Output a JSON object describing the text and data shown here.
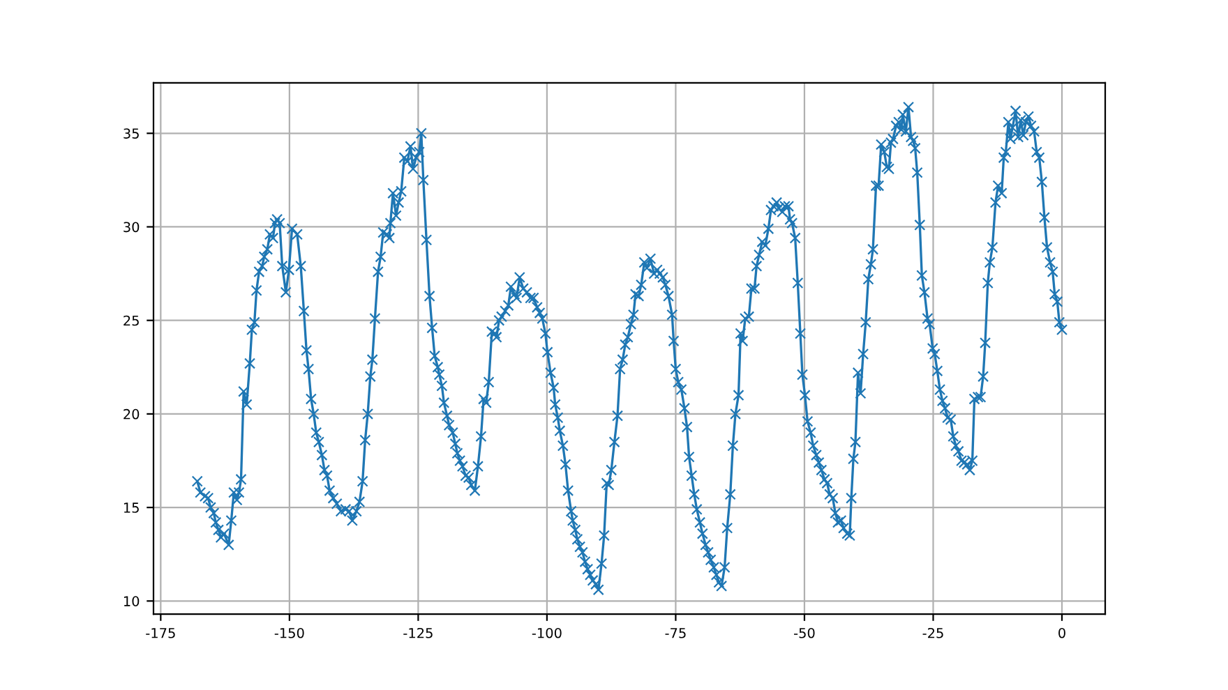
{
  "chart_data": {
    "type": "line",
    "color": "#1f77b4",
    "marker": "cross",
    "line_style": "solid",
    "grid": true,
    "xlim": [
      -176.4,
      8.4
    ],
    "ylim": [
      9.3,
      37.7
    ],
    "xticks": [
      -175,
      -150,
      -125,
      -100,
      -75,
      -50,
      -25,
      0
    ],
    "yticks": [
      10,
      15,
      20,
      25,
      30,
      35
    ],
    "x": [
      -167.9,
      -167.3,
      -166.4,
      -165.8,
      -165.3,
      -164.7,
      -164.3,
      -163.8,
      -163.3,
      -162.7,
      -161.8,
      -161.3,
      -160.8,
      -160.2,
      -159.8,
      -159.4,
      -158.9,
      -158.3,
      -157.7,
      -157.3,
      -156.8,
      -156.4,
      -155.9,
      -155.3,
      -154.9,
      -154.3,
      -153.8,
      -153.2,
      -152.8,
      -152.4,
      -151.9,
      -151.4,
      -150.7,
      -150.1,
      -149.5,
      -148.5,
      -147.8,
      -147.2,
      -146.7,
      -146.3,
      -145.8,
      -145.3,
      -144.8,
      -144.3,
      -143.7,
      -143.2,
      -142.7,
      -142.2,
      -141.5,
      -140.8,
      -140.0,
      -139.1,
      -138.4,
      -137.8,
      -137.0,
      -136.4,
      -135.8,
      -135.3,
      -134.8,
      -134.3,
      -133.9,
      -133.4,
      -132.8,
      -132.3,
      -131.8,
      -131.1,
      -130.6,
      -130.4,
      -129.9,
      -129.3,
      -128.8,
      -128.3,
      -127.7,
      -127.1,
      -126.5,
      -126.0,
      -125.4,
      -124.8,
      -124.4,
      -124.0,
      -123.4,
      -122.8,
      -122.3,
      -121.8,
      -121.2,
      -120.9,
      -120.4,
      -120.0,
      -119.4,
      -119.0,
      -118.3,
      -117.8,
      -117.4,
      -116.9,
      -116.4,
      -115.8,
      -115.2,
      -114.7,
      -114.0,
      -113.4,
      -112.8,
      -112.3,
      -111.8,
      -111.3,
      -110.7,
      -110.1,
      -109.8,
      -109.3,
      -108.8,
      -108.1,
      -107.5,
      -107.0,
      -106.3,
      -105.9,
      -105.3,
      -104.6,
      -103.9,
      -103.2,
      -102.6,
      -101.9,
      -101.4,
      -100.9,
      -100.3,
      -99.9,
      -99.3,
      -98.7,
      -98.4,
      -97.9,
      -97.5,
      -96.9,
      -96.4,
      -95.9,
      -95.3,
      -95.0,
      -94.5,
      -94.1,
      -93.6,
      -93.1,
      -92.6,
      -92.1,
      -91.6,
      -91.1,
      -90.5,
      -90.0,
      -89.4,
      -88.9,
      -88.4,
      -88.0,
      -87.5,
      -86.9,
      -86.3,
      -85.8,
      -85.3,
      -84.8,
      -84.3,
      -83.7,
      -83.2,
      -82.8,
      -82.2,
      -81.7,
      -81.1,
      -80.6,
      -79.9,
      -79.2,
      -78.6,
      -78.1,
      -77.5,
      -77.0,
      -76.4,
      -75.7,
      -75.4,
      -75.0,
      -74.5,
      -73.9,
      -73.3,
      -72.8,
      -72.4,
      -71.9,
      -71.4,
      -70.9,
      -70.3,
      -69.8,
      -69.2,
      -68.7,
      -68.2,
      -67.6,
      -67.1,
      -66.6,
      -66.1,
      -65.5,
      -65.0,
      -64.4,
      -63.9,
      -63.4,
      -62.8,
      -62.4,
      -62.0,
      -61.5,
      -60.8,
      -60.3,
      -59.7,
      -59.3,
      -58.8,
      -58.2,
      -57.6,
      -57.0,
      -56.5,
      -56.0,
      -55.4,
      -55.0,
      -54.3,
      -53.8,
      -53.1,
      -52.8,
      -52.4,
      -51.8,
      -51.3,
      -50.8,
      -50.4,
      -49.9,
      -49.4,
      -48.8,
      -48.3,
      -47.7,
      -47.2,
      -46.7,
      -46.1,
      -45.6,
      -45.1,
      -44.5,
      -44.0,
      -43.5,
      -42.9,
      -42.4,
      -41.7,
      -41.2,
      -40.9,
      -40.5,
      -40.1,
      -39.6,
      -39.1,
      -38.6,
      -38.1,
      -37.6,
      -37.1,
      -36.7,
      -36.1,
      -35.6,
      -35.1,
      -34.5,
      -34.0,
      -33.6,
      -33.2,
      -32.8,
      -32.2,
      -31.7,
      -31.2,
      -30.9,
      -30.3,
      -29.8,
      -29.3,
      -28.9,
      -28.5,
      -28.1,
      -27.6,
      -27.2,
      -26.7,
      -26.1,
      -25.7,
      -25.1,
      -24.7,
      -24.2,
      -23.7,
      -23.2,
      -22.7,
      -22.2,
      -21.6,
      -21.1,
      -20.6,
      -20.1,
      -19.5,
      -19.0,
      -18.4,
      -17.9,
      -17.4,
      -17.0,
      -16.3,
      -15.8,
      -15.3,
      -14.9,
      -14.4,
      -14.0,
      -13.5,
      -12.9,
      -12.4,
      -11.7,
      -11.3,
      -10.9,
      -10.4,
      -10.0,
      -9.6,
      -9.0,
      -8.5,
      -8.0,
      -7.5,
      -7.0,
      -6.5,
      -6.0,
      -5.4,
      -4.9,
      -4.4,
      -3.9,
      -3.4,
      -2.9,
      -2.3,
      -1.8,
      -1.4,
      -0.9,
      -0.5,
      0.0
    ],
    "values": [
      16.4,
      15.8,
      15.6,
      15.5,
      15.0,
      14.7,
      14.2,
      13.8,
      13.4,
      13.6,
      13.0,
      14.3,
      15.8,
      15.4,
      15.8,
      16.5,
      21.2,
      20.5,
      22.7,
      24.5,
      24.9,
      26.6,
      27.6,
      27.9,
      28.4,
      28.8,
      29.6,
      29.4,
      30.2,
      30.4,
      30.2,
      27.9,
      26.5,
      27.7,
      29.9,
      29.6,
      27.9,
      25.5,
      23.4,
      22.4,
      20.8,
      20.0,
      19.0,
      18.5,
      17.8,
      17.0,
      16.7,
      15.9,
      15.5,
      15.2,
      14.8,
      14.9,
      14.8,
      14.3,
      14.8,
      15.3,
      16.4,
      18.6,
      20.0,
      22.0,
      22.9,
      25.1,
      27.6,
      28.4,
      29.7,
      29.6,
      29.4,
      30.2,
      31.8,
      30.6,
      31.3,
      31.9,
      33.7,
      33.5,
      34.3,
      33.1,
      33.7,
      34.0,
      35.0,
      32.5,
      29.3,
      26.3,
      24.6,
      23.1,
      22.5,
      22.1,
      21.5,
      20.6,
      19.9,
      19.4,
      19.0,
      18.4,
      17.9,
      17.5,
      17.2,
      16.7,
      16.6,
      16.2,
      15.9,
      17.2,
      18.8,
      20.8,
      20.6,
      21.7,
      24.4,
      24.3,
      24.1,
      25.0,
      25.2,
      25.5,
      25.8,
      26.8,
      26.4,
      26.2,
      27.3,
      26.7,
      26.5,
      26.2,
      26.2,
      25.7,
      25.4,
      25.1,
      24.3,
      23.3,
      22.2,
      21.4,
      20.5,
      19.8,
      19.1,
      18.3,
      17.3,
      15.9,
      14.8,
      14.3,
      13.8,
      13.3,
      12.9,
      12.6,
      12.1,
      11.7,
      11.4,
      11.1,
      10.9,
      10.6,
      12.0,
      13.5,
      16.3,
      16.2,
      17.0,
      18.5,
      19.9,
      22.4,
      22.9,
      23.7,
      24.1,
      24.8,
      25.3,
      26.4,
      26.3,
      26.9,
      28.1,
      27.8,
      28.3,
      27.5,
      27.7,
      27.5,
      27.3,
      26.9,
      26.3,
      25.3,
      23.9,
      22.4,
      21.7,
      21.3,
      20.3,
      19.3,
      17.7,
      16.7,
      15.7,
      14.9,
      14.2,
      13.6,
      13.0,
      12.6,
      12.2,
      11.8,
      11.4,
      11.0,
      10.8,
      11.8,
      13.9,
      15.7,
      18.3,
      20.0,
      21.0,
      24.3,
      23.9,
      25.1,
      25.2,
      26.7,
      26.7,
      27.9,
      28.5,
      29.2,
      29.0,
      29.9,
      30.9,
      31.1,
      31.3,
      31.0,
      30.8,
      31.1,
      31.1,
      30.4,
      30.2,
      29.4,
      27.0,
      24.3,
      22.1,
      21.0,
      19.6,
      19.0,
      18.3,
      17.8,
      17.4,
      17.0,
      16.5,
      16.3,
      15.7,
      15.5,
      14.7,
      14.2,
      14.3,
      13.9,
      13.6,
      13.5,
      15.5,
      17.6,
      18.5,
      22.2,
      21.1,
      23.2,
      24.9,
      27.2,
      28.0,
      28.8,
      32.2,
      32.2,
      34.4,
      34.0,
      33.2,
      33.1,
      34.5,
      34.7,
      35.4,
      35.6,
      35.2,
      36.0,
      35.1,
      36.4,
      34.8,
      34.6,
      34.2,
      32.9,
      30.1,
      27.4,
      26.5,
      25.1,
      24.8,
      23.5,
      23.2,
      22.3,
      21.3,
      20.7,
      20.3,
      19.8,
      19.7,
      18.8,
      18.3,
      18.0,
      17.5,
      17.4,
      17.3,
      17.0,
      17.5,
      20.8,
      20.9,
      20.9,
      22.0,
      23.8,
      27.0,
      28.1,
      28.9,
      31.3,
      32.2,
      31.8,
      33.7,
      34.0,
      35.6,
      34.7,
      35.3,
      36.2,
      34.8,
      35.7,
      34.9,
      35.6,
      35.9,
      35.4,
      35.1,
      34.0,
      33.7,
      32.4,
      30.5,
      28.9,
      28.1,
      27.6,
      26.4,
      26.0,
      24.9,
      24.5
    ]
  }
}
